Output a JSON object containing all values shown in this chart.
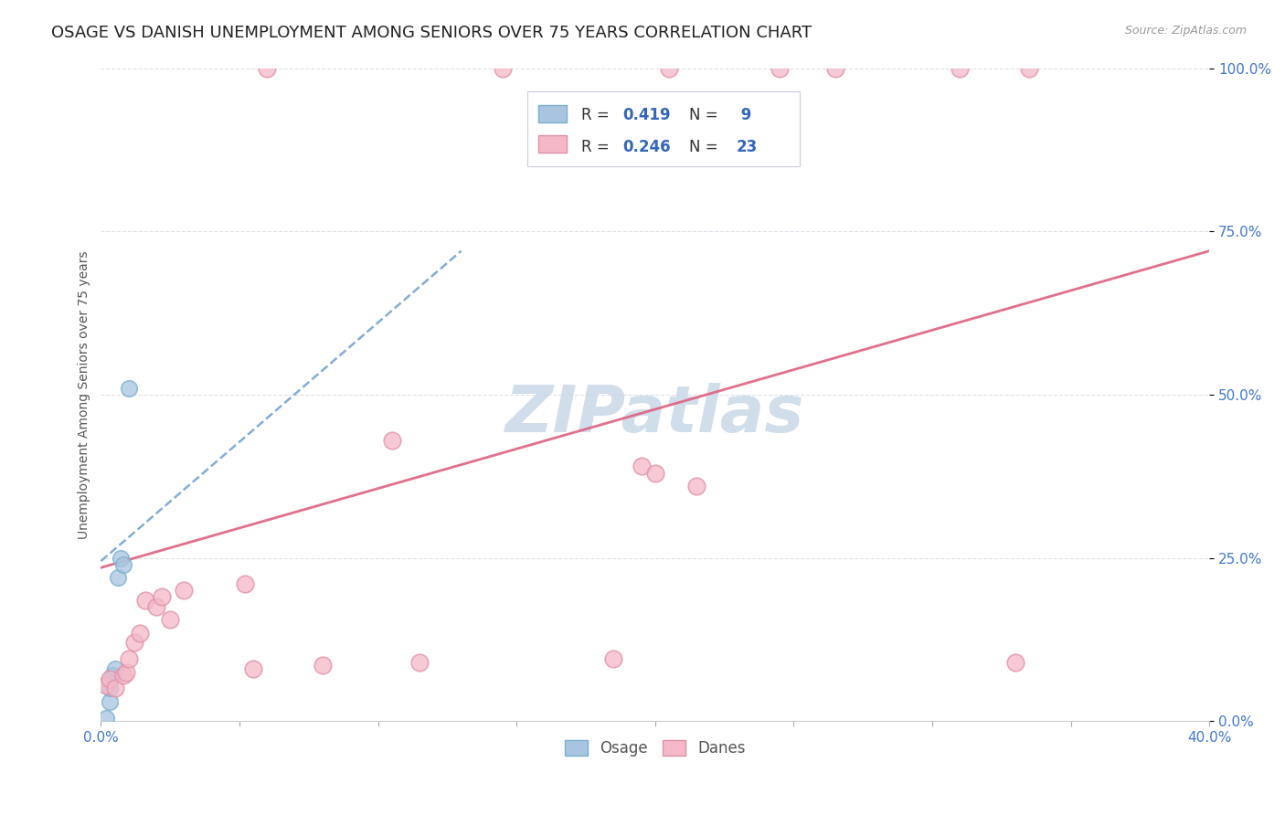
{
  "title": "OSAGE VS DANISH UNEMPLOYMENT AMONG SENIORS OVER 75 YEARS CORRELATION CHART",
  "source": "Source: ZipAtlas.com",
  "ylabel": "Unemployment Among Seniors over 75 years",
  "xlim": [
    0.0,
    0.4
  ],
  "ylim": [
    0.0,
    1.0
  ],
  "ytick_labels": [
    "0.0%",
    "25.0%",
    "50.0%",
    "75.0%",
    "100.0%"
  ],
  "ytick_values": [
    0.0,
    0.25,
    0.5,
    0.75,
    1.0
  ],
  "background_color": "#ffffff",
  "grid_color": "#dde0ea",
  "osage_color": "#a8c4e0",
  "osage_edge": "#7aafd0",
  "danes_color": "#f4b8c8",
  "danes_edge": "#e090a8",
  "osage_R": 0.419,
  "osage_N": 9,
  "danes_R": 0.246,
  "danes_N": 23,
  "legend_osage": "Osage",
  "legend_danes": "Danes",
  "osage_x": [
    0.002,
    0.003,
    0.003,
    0.004,
    0.005,
    0.006,
    0.007,
    0.008,
    0.01
  ],
  "osage_y": [
    0.005,
    0.03,
    0.05,
    0.07,
    0.08,
    0.22,
    0.25,
    0.24,
    0.51
  ],
  "danes_x": [
    0.002,
    0.003,
    0.005,
    0.008,
    0.009,
    0.01,
    0.012,
    0.014,
    0.016,
    0.02,
    0.022,
    0.025,
    0.03,
    0.052,
    0.055,
    0.08,
    0.105,
    0.115,
    0.185,
    0.195,
    0.2,
    0.215,
    0.33
  ],
  "danes_y": [
    0.055,
    0.065,
    0.05,
    0.07,
    0.075,
    0.095,
    0.12,
    0.135,
    0.185,
    0.175,
    0.19,
    0.155,
    0.2,
    0.21,
    0.08,
    0.085,
    0.43,
    0.09,
    0.095,
    0.39,
    0.38,
    0.36,
    0.09
  ],
  "danes_top_x": [
    0.06,
    0.145,
    0.205,
    0.245,
    0.265,
    0.31,
    0.335
  ],
  "danes_top_y": [
    1.0,
    1.0,
    1.0,
    1.0,
    1.0,
    1.0,
    1.0
  ],
  "osage_line_x": [
    0.0,
    0.13
  ],
  "osage_line_y": [
    0.245,
    0.72
  ],
  "danes_line_x": [
    0.0,
    0.4
  ],
  "danes_line_y": [
    0.235,
    0.72
  ],
  "title_fontsize": 13,
  "axis_label_fontsize": 10,
  "tick_fontsize": 11,
  "watermark_text": "ZIPatlas",
  "watermark_color": "#c8d8e8",
  "watermark_fontsize": 52
}
